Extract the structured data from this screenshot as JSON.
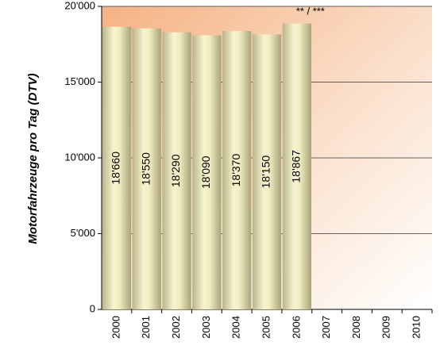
{
  "chart_data": {
    "type": "bar",
    "y_label": "Motorfahrzeuge pro Tag (DTV)",
    "annotation": "** / ***",
    "categories": [
      "2000",
      "2001",
      "2002",
      "2003",
      "2004",
      "2005",
      "2006",
      "2007",
      "2008",
      "2009",
      "2010"
    ],
    "values": [
      18660,
      18550,
      18290,
      18090,
      18370,
      18150,
      18867,
      null,
      null,
      null,
      null
    ],
    "value_labels": [
      "18'660",
      "18'550",
      "18'290",
      "18'090",
      "18'370",
      "18'150",
      "18'867",
      null,
      null,
      null,
      null
    ],
    "ylim": [
      0,
      20000
    ],
    "yticks": [
      0,
      {
        "value": 5000,
        "label": "5'000"
      },
      {
        "value": 10000,
        "label": "10'000"
      },
      {
        "value": 15000,
        "label": "15'000"
      },
      {
        "value": 20000,
        "label": "20'000"
      }
    ],
    "grid": true
  }
}
